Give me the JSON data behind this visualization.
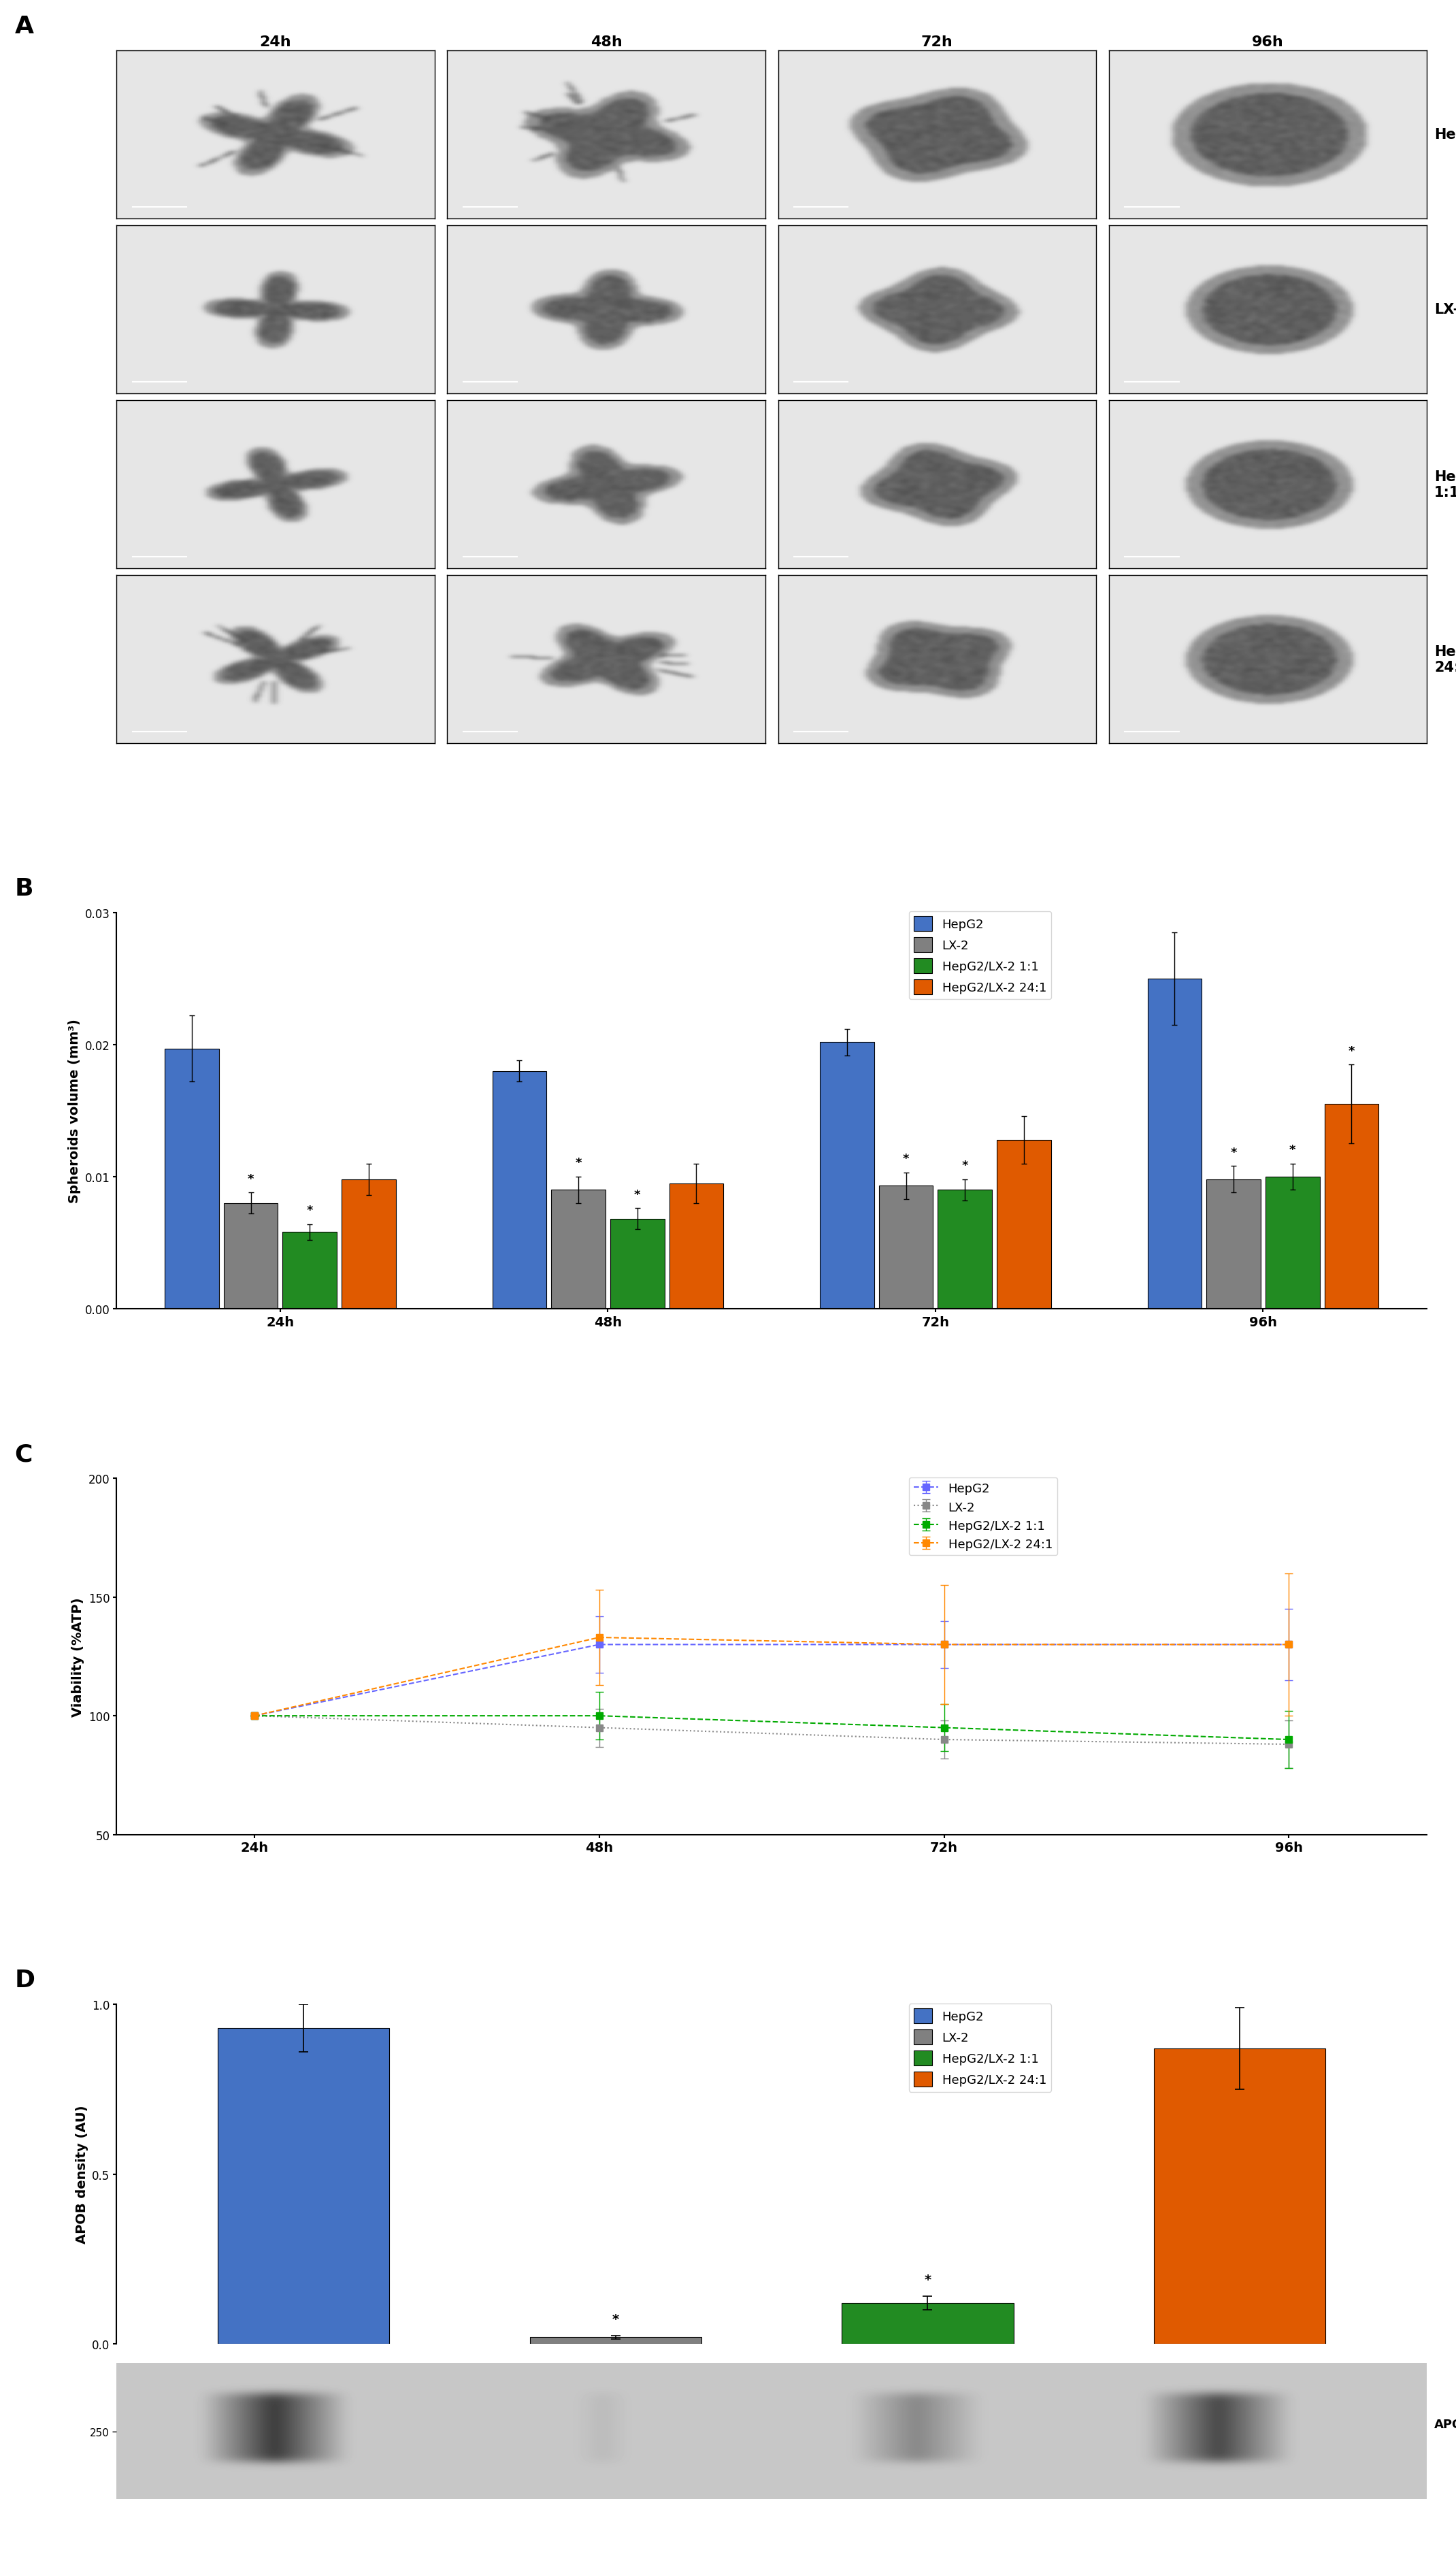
{
  "panel_labels": [
    "A",
    "B",
    "C",
    "D"
  ],
  "timepoints": [
    "24h",
    "48h",
    "72h",
    "96h"
  ],
  "cell_lines_legend": [
    "HepG2",
    "LX-2",
    "HepG2/LX-2 1:1",
    "HepG2/LX-2 24:1"
  ],
  "bar_colors": [
    "#4472C4",
    "#808080",
    "#228B22",
    "#E05A00"
  ],
  "line_colors": [
    "#6666FF",
    "#888888",
    "#00AA00",
    "#FF8800"
  ],
  "B_values": [
    [
      0.0197,
      0.018,
      0.0202,
      0.025
    ],
    [
      0.008,
      0.009,
      0.0093,
      0.0098
    ],
    [
      0.0058,
      0.0068,
      0.009,
      0.01
    ],
    [
      0.0098,
      0.0095,
      0.0128,
      0.0155
    ]
  ],
  "B_errors": [
    [
      0.0025,
      0.0008,
      0.001,
      0.0035
    ],
    [
      0.0008,
      0.001,
      0.001,
      0.001
    ],
    [
      0.0006,
      0.0008,
      0.0008,
      0.001
    ],
    [
      0.0012,
      0.0015,
      0.0018,
      0.003
    ]
  ],
  "B_ylim": [
    0,
    0.03
  ],
  "B_yticks": [
    0.0,
    0.01,
    0.02,
    0.03
  ],
  "B_ylabel": "Spheroids volume (mm³)",
  "C_values": [
    [
      100,
      130,
      130,
      130
    ],
    [
      100,
      95,
      90,
      88
    ],
    [
      100,
      100,
      95,
      90
    ],
    [
      100,
      133,
      130,
      130
    ]
  ],
  "C_errors": [
    [
      0,
      12,
      10,
      15
    ],
    [
      0,
      8,
      8,
      10
    ],
    [
      0,
      10,
      10,
      12
    ],
    [
      0,
      20,
      25,
      30
    ]
  ],
  "C_ylim": [
    50,
    200
  ],
  "C_yticks": [
    50,
    100,
    150,
    200
  ],
  "C_ylabel": "Viability (%ATP)",
  "D_values": [
    0.93,
    0.02,
    0.12,
    0.87
  ],
  "D_errors": [
    0.07,
    0.005,
    0.02,
    0.12
  ],
  "D_colors": [
    "#4472C4",
    "#808080",
    "#228B22",
    "#E05A00"
  ],
  "D_ylabel": "APOB density (AU)",
  "D_ylim": [
    0,
    1.0
  ],
  "D_yticks": [
    0.0,
    0.5,
    1.0
  ],
  "western_blot_label": "APOB",
  "western_blot_marker": "250",
  "background_color": "#FFFFFF"
}
